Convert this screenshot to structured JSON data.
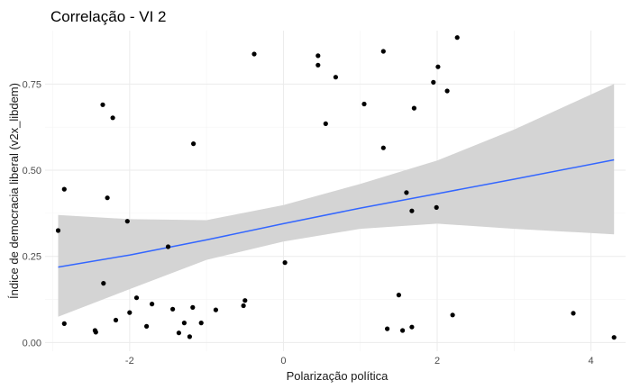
{
  "chart_data": {
    "type": "scatter",
    "title": "Correlação - VI 2",
    "xlabel": "Polarização política",
    "ylabel": "Índice de democracia liberal (v2x_libdem)",
    "xlim": [
      -3.1,
      4.45
    ],
    "ylim": [
      -0.025,
      0.905
    ],
    "x_ticks": [
      -2,
      0,
      2,
      4
    ],
    "x_tick_labels": [
      "-2",
      "0",
      "2",
      "4"
    ],
    "y_ticks": [
      0.0,
      0.25,
      0.5,
      0.75
    ],
    "y_tick_labels": [
      "0.00",
      "0.25",
      "0.50",
      "0.75"
    ],
    "grid": true,
    "legend": "none",
    "points": [
      {
        "x": -2.93,
        "y": 0.325
      },
      {
        "x": -2.85,
        "y": 0.445
      },
      {
        "x": -2.85,
        "y": 0.055
      },
      {
        "x": -2.45,
        "y": 0.035
      },
      {
        "x": -2.44,
        "y": 0.03
      },
      {
        "x": -2.35,
        "y": 0.69
      },
      {
        "x": -2.34,
        "y": 0.172
      },
      {
        "x": -2.29,
        "y": 0.42
      },
      {
        "x": -2.22,
        "y": 0.652
      },
      {
        "x": -2.18,
        "y": 0.065
      },
      {
        "x": -2.03,
        "y": 0.352
      },
      {
        "x": -2.0,
        "y": 0.087
      },
      {
        "x": -1.91,
        "y": 0.13
      },
      {
        "x": -1.78,
        "y": 0.047
      },
      {
        "x": -1.71,
        "y": 0.112
      },
      {
        "x": -1.5,
        "y": 0.278
      },
      {
        "x": -1.44,
        "y": 0.097
      },
      {
        "x": -1.36,
        "y": 0.028
      },
      {
        "x": -1.29,
        "y": 0.057
      },
      {
        "x": -1.22,
        "y": 0.017
      },
      {
        "x": -1.18,
        "y": 0.102
      },
      {
        "x": -1.17,
        "y": 0.577
      },
      {
        "x": -1.07,
        "y": 0.057
      },
      {
        "x": -0.88,
        "y": 0.095
      },
      {
        "x": -0.52,
        "y": 0.107
      },
      {
        "x": -0.5,
        "y": 0.122
      },
      {
        "x": -0.38,
        "y": 0.837
      },
      {
        "x": 0.02,
        "y": 0.232
      },
      {
        "x": 0.45,
        "y": 0.832
      },
      {
        "x": 0.45,
        "y": 0.805
      },
      {
        "x": 0.55,
        "y": 0.635
      },
      {
        "x": 0.68,
        "y": 0.77
      },
      {
        "x": 1.05,
        "y": 0.692
      },
      {
        "x": 1.3,
        "y": 0.845
      },
      {
        "x": 1.3,
        "y": 0.565
      },
      {
        "x": 1.35,
        "y": 0.04
      },
      {
        "x": 1.5,
        "y": 0.138
      },
      {
        "x": 1.55,
        "y": 0.035
      },
      {
        "x": 1.6,
        "y": 0.435
      },
      {
        "x": 1.67,
        "y": 0.382
      },
      {
        "x": 1.67,
        "y": 0.045
      },
      {
        "x": 1.7,
        "y": 0.68
      },
      {
        "x": 1.95,
        "y": 0.755
      },
      {
        "x": 1.99,
        "y": 0.392
      },
      {
        "x": 2.01,
        "y": 0.8
      },
      {
        "x": 2.13,
        "y": 0.73
      },
      {
        "x": 2.2,
        "y": 0.08
      },
      {
        "x": 2.26,
        "y": 0.885
      },
      {
        "x": 3.77,
        "y": 0.085
      },
      {
        "x": 4.3,
        "y": 0.015
      }
    ],
    "fit": {
      "type": "linear",
      "x": [
        -2.93,
        -2.0,
        -1.0,
        0.0,
        1.0,
        2.0,
        3.0,
        4.3
      ],
      "y": [
        0.219,
        0.254,
        0.298,
        0.345,
        0.39,
        0.432,
        0.474,
        0.53
      ],
      "ci_lower": [
        0.075,
        0.155,
        0.24,
        0.293,
        0.33,
        0.345,
        0.33,
        0.314
      ],
      "ci_upper": [
        0.37,
        0.358,
        0.355,
        0.399,
        0.46,
        0.528,
        0.618,
        0.75
      ]
    },
    "colors": {
      "points": "#000000",
      "fit_line": "#3366ff",
      "ci_band": "#d4d4d4",
      "grid_major": "#ebebeb",
      "grid_minor": "#f4f4f4"
    }
  }
}
